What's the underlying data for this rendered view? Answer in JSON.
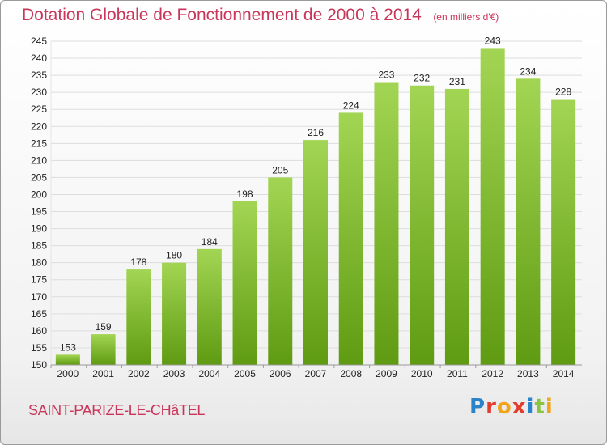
{
  "header": {
    "title": "Dotation Globale de Fonctionnement de 2000 à 2014",
    "unit": "(en milliers d'€)"
  },
  "footer": {
    "commune": "SAINT-PARIZE-LE-CHâTEL",
    "brand": "Proxiti"
  },
  "colors": {
    "bar_top": "#a2d553",
    "bar_bottom": "#5f9b12",
    "title": "#c8365a",
    "grid": "#dddddd"
  },
  "chart_data": {
    "type": "bar",
    "title": "Dotation Globale de Fonctionnement de 2000 à 2014",
    "subtitle": "(en milliers d'€)",
    "categories": [
      "2000",
      "2001",
      "2002",
      "2003",
      "2004",
      "2005",
      "2006",
      "2007",
      "2008",
      "2009",
      "2010",
      "2011",
      "2012",
      "2013",
      "2014"
    ],
    "values": [
      153,
      159,
      178,
      180,
      184,
      198,
      205,
      216,
      224,
      233,
      232,
      231,
      243,
      234,
      228
    ],
    "ylim": [
      150,
      245
    ],
    "yticks": [
      150,
      155,
      160,
      165,
      170,
      175,
      180,
      185,
      190,
      195,
      200,
      205,
      210,
      215,
      220,
      225,
      230,
      235,
      240,
      245
    ],
    "grid": true,
    "legend": "none",
    "data_labels": true
  }
}
